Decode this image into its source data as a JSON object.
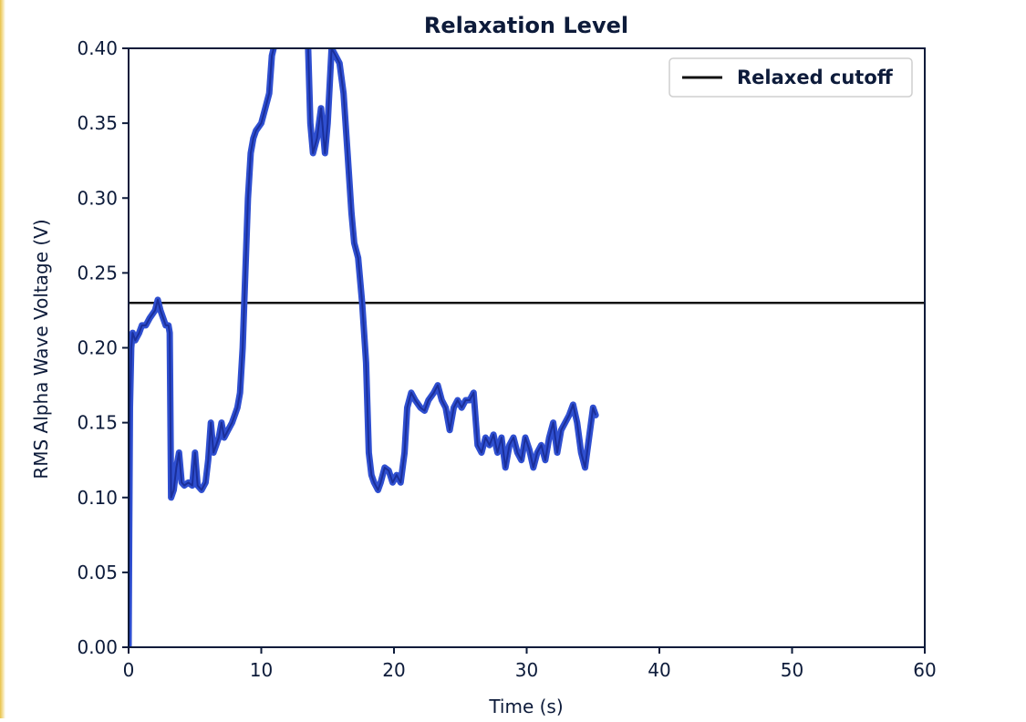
{
  "chart_data": {
    "type": "line",
    "title": "Relaxation Level",
    "xlabel": "Time (s)",
    "ylabel": "RMS Alpha Wave Voltage (V)",
    "xlim": [
      0,
      60
    ],
    "ylim": [
      0.0,
      0.4
    ],
    "x_ticks": [
      0,
      10,
      20,
      30,
      40,
      50,
      60
    ],
    "x_tick_labels": [
      "0",
      "10",
      "20",
      "30",
      "40",
      "50",
      "60"
    ],
    "y_ticks": [
      0.0,
      0.05,
      0.1,
      0.15,
      0.2,
      0.25,
      0.3,
      0.35,
      0.4
    ],
    "y_tick_labels": [
      "0.00",
      "0.05",
      "0.10",
      "0.15",
      "0.20",
      "0.25",
      "0.30",
      "0.35",
      "0.40"
    ],
    "grid": false,
    "legend": {
      "position": "top-right",
      "entries": [
        {
          "label": "Relaxed cutoff",
          "color": "#111111"
        }
      ]
    },
    "series": [
      {
        "color": "#2f4fd0",
        "x": [
          0,
          0.05,
          0.1,
          0.2,
          0.3,
          0.5,
          0.8,
          1.0,
          1.3,
          1.6,
          2.0,
          2.2,
          2.4,
          2.6,
          2.8,
          3.0,
          3.1,
          3.2,
          3.4,
          3.6,
          3.8,
          4.0,
          4.2,
          4.5,
          4.8,
          5.0,
          5.2,
          5.5,
          5.8,
          6.0,
          6.2,
          6.4,
          6.6,
          6.8,
          7.0,
          7.2,
          7.5,
          7.8,
          8.0,
          8.2,
          8.4,
          8.6,
          8.8,
          9.0,
          9.2,
          9.4,
          9.6,
          10.0,
          10.3,
          10.6,
          10.8,
          11.2,
          13.5,
          13.7,
          13.9,
          14.2,
          14.5,
          14.8,
          15.0,
          15.3,
          15.6,
          15.9,
          16.2,
          16.5,
          16.8,
          17.0,
          17.3,
          17.6,
          17.9,
          18.1,
          18.3,
          18.5,
          18.8,
          19.0,
          19.3,
          19.6,
          19.9,
          20.2,
          20.5,
          20.8,
          21.0,
          21.3,
          21.6,
          22.0,
          22.3,
          22.6,
          23.0,
          23.3,
          23.6,
          23.9,
          24.2,
          24.5,
          24.8,
          25.1,
          25.4,
          25.7,
          26.0,
          26.3,
          26.6,
          26.9,
          27.2,
          27.5,
          27.8,
          28.1,
          28.4,
          28.7,
          29.0,
          29.3,
          29.6,
          29.9,
          30.2,
          30.5,
          30.8,
          31.1,
          31.4,
          31.7,
          32.0,
          32.3,
          32.6,
          32.9,
          33.2,
          33.5,
          33.8,
          34.1,
          34.4,
          34.7,
          35.0,
          35.2
        ],
        "y": [
          0.0,
          0.08,
          0.16,
          0.2,
          0.21,
          0.205,
          0.21,
          0.215,
          0.215,
          0.22,
          0.225,
          0.232,
          0.225,
          0.22,
          0.215,
          0.215,
          0.21,
          0.1,
          0.105,
          0.12,
          0.13,
          0.11,
          0.108,
          0.11,
          0.108,
          0.13,
          0.108,
          0.105,
          0.11,
          0.125,
          0.15,
          0.13,
          0.135,
          0.14,
          0.15,
          0.14,
          0.145,
          0.15,
          0.155,
          0.16,
          0.17,
          0.2,
          0.25,
          0.3,
          0.33,
          0.34,
          0.345,
          0.35,
          0.36,
          0.37,
          0.395,
          0.41,
          0.41,
          0.35,
          0.33,
          0.34,
          0.36,
          0.33,
          0.35,
          0.4,
          0.395,
          0.39,
          0.37,
          0.33,
          0.29,
          0.27,
          0.26,
          0.23,
          0.19,
          0.13,
          0.115,
          0.11,
          0.105,
          0.11,
          0.12,
          0.118,
          0.11,
          0.115,
          0.11,
          0.13,
          0.16,
          0.17,
          0.165,
          0.16,
          0.158,
          0.165,
          0.17,
          0.175,
          0.165,
          0.16,
          0.145,
          0.16,
          0.165,
          0.16,
          0.165,
          0.165,
          0.17,
          0.135,
          0.13,
          0.14,
          0.135,
          0.142,
          0.13,
          0.14,
          0.12,
          0.135,
          0.14,
          0.13,
          0.125,
          0.14,
          0.132,
          0.12,
          0.13,
          0.135,
          0.125,
          0.14,
          0.15,
          0.13,
          0.145,
          0.15,
          0.155,
          0.162,
          0.15,
          0.13,
          0.12,
          0.14,
          0.16,
          0.155
        ]
      }
    ],
    "hlines": [
      {
        "label": "Relaxed cutoff",
        "y": 0.23,
        "color": "#111111"
      }
    ]
  }
}
